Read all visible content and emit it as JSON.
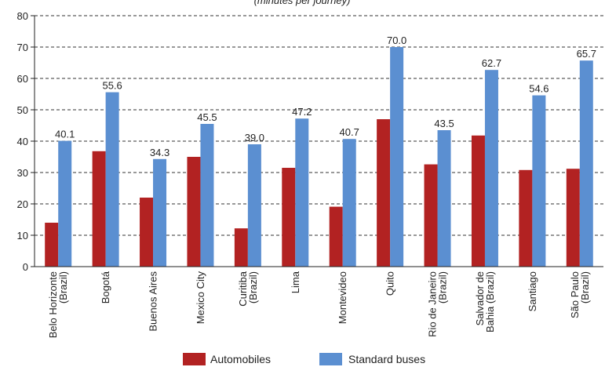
{
  "chart_data": {
    "type": "bar",
    "title": "(minutes per journey)",
    "ylim": [
      0,
      80
    ],
    "yticks": [
      0,
      10,
      20,
      30,
      40,
      50,
      60,
      70,
      80
    ],
    "grid": true,
    "legend_position": "bottom-center",
    "categories": [
      [
        "Belo Horizonte",
        "(Brazil)"
      ],
      [
        "Bogotá"
      ],
      [
        "Buenos Aires"
      ],
      [
        "Mexico City"
      ],
      [
        "Curitiba",
        "(Brazil)"
      ],
      [
        "Lima"
      ],
      [
        "Montevideo"
      ],
      [
        "Quito"
      ],
      [
        "Rio de Janeiro",
        "(Brazil)"
      ],
      [
        "Salvador de",
        "Bahia (Brazil)"
      ],
      [
        "Santiago"
      ],
      [
        "São Paulo",
        "(Brazil)"
      ]
    ],
    "series": [
      {
        "name": "Automobiles",
        "color": "#b22222",
        "values": [
          14.0,
          36.8,
          22.0,
          35.0,
          12.2,
          31.5,
          19.1,
          47.0,
          32.6,
          41.8,
          30.8,
          31.2
        ],
        "show_labels": false
      },
      {
        "name": "Standard buses",
        "color": "#5b8fd1",
        "values": [
          40.1,
          55.6,
          34.3,
          45.5,
          39.0,
          47.2,
          40.7,
          70.0,
          43.5,
          62.7,
          54.6,
          65.7
        ],
        "labels": [
          "40.1",
          "55.6",
          "34.3",
          "45.5",
          "39.0",
          "47.2",
          "40.7",
          "70.0",
          "43.5",
          "62.7",
          "54.6",
          "65.7"
        ],
        "show_labels": true
      }
    ]
  }
}
